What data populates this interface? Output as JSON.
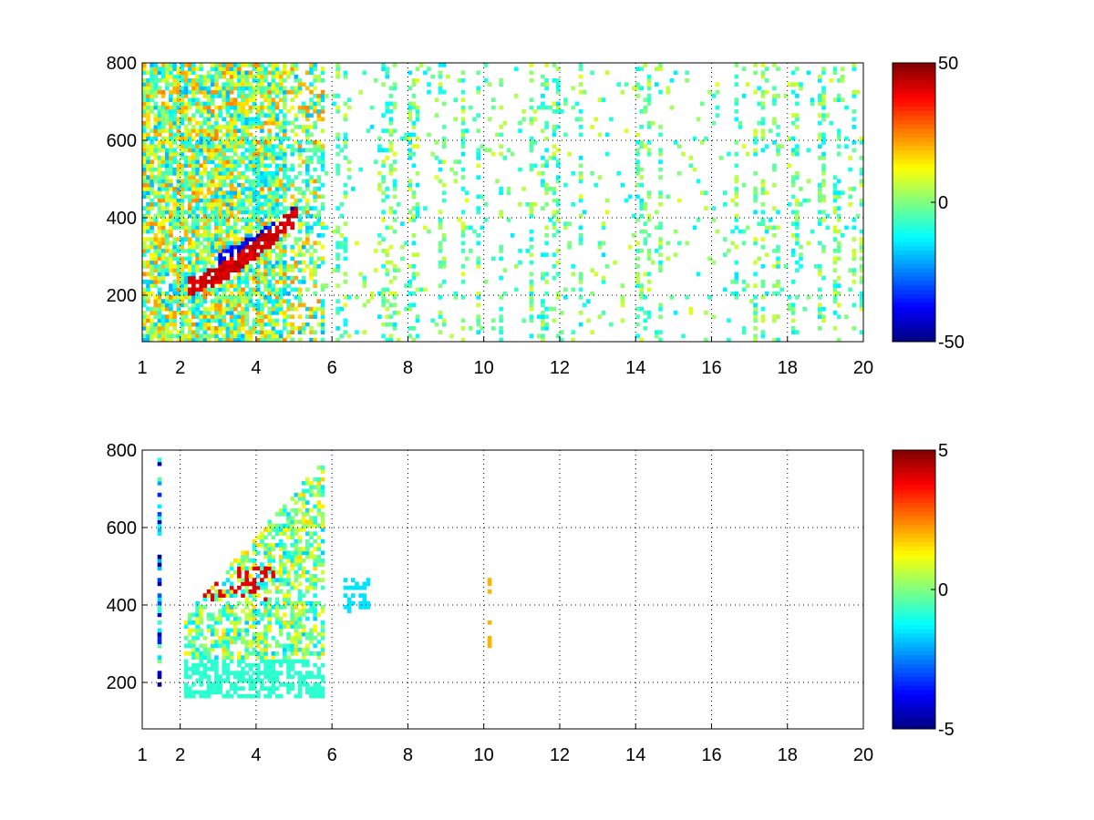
{
  "colors": {
    "background": "#ffffff",
    "axis": "#000000",
    "grid": "#000000",
    "colormap": "jet"
  },
  "chart_data": [
    {
      "type": "heatmap",
      "title": "",
      "xlabel": "",
      "ylabel": "",
      "xlim": [
        1,
        20
      ],
      "ylim": [
        80,
        800
      ],
      "xticks": [
        1,
        2,
        4,
        6,
        8,
        10,
        12,
        14,
        16,
        18,
        20
      ],
      "xtick_labels": [
        "1",
        "2",
        "4",
        "6",
        "8",
        "10",
        "12",
        "14",
        "16",
        "18",
        "20"
      ],
      "yticks": [
        200,
        400,
        600,
        800
      ],
      "ytick_labels": [
        "200",
        "400",
        "600",
        "800"
      ],
      "grid": true,
      "colorbar": {
        "clim": [
          -50,
          50
        ],
        "ticks": [
          -50,
          0,
          50
        ],
        "tick_labels": [
          "-50",
          "0",
          "50"
        ],
        "colormap": "jet",
        "placement": "right"
      },
      "features": [
        {
          "description": "dense scatter of values",
          "x_range": [
            1,
            6
          ],
          "y_range": [
            150,
            800
          ]
        },
        {
          "description": "positive ridge (red)",
          "points": [
            [
              2.2,
              220
            ],
            [
              3,
              250
            ],
            [
              3.5,
              280
            ],
            [
              4,
              320
            ],
            [
              4.5,
              360
            ],
            [
              5,
              400
            ]
          ],
          "value": 45
        },
        {
          "description": "negative band (blue)",
          "points": [
            [
              3,
              240
            ],
            [
              3.5,
              260
            ],
            [
              4,
              290
            ],
            [
              4.5,
              320
            ],
            [
              5,
              360
            ]
          ],
          "value": -45
        },
        {
          "description": "sparse near-zero values",
          "x_range": [
            6,
            20
          ],
          "y_range": [
            80,
            800
          ],
          "value_range": [
            -15,
            10
          ]
        }
      ]
    },
    {
      "type": "heatmap",
      "title": "",
      "xlabel": "",
      "ylabel": "",
      "xlim": [
        1,
        20
      ],
      "ylim": [
        80,
        800
      ],
      "xticks": [
        1,
        2,
        4,
        6,
        8,
        10,
        12,
        14,
        16,
        18,
        20
      ],
      "xtick_labels": [
        "1",
        "2",
        "4",
        "6",
        "8",
        "10",
        "12",
        "14",
        "16",
        "18",
        "20"
      ],
      "yticks": [
        200,
        400,
        600,
        800
      ],
      "ytick_labels": [
        "200",
        "400",
        "600",
        "800"
      ],
      "grid": true,
      "colorbar": {
        "clim": [
          -5,
          5
        ],
        "ticks": [
          -5,
          0,
          5
        ],
        "tick_labels": [
          "-5",
          "0",
          "5"
        ],
        "colormap": "jet",
        "placement": "right"
      },
      "features": [
        {
          "description": "dense scatter of values",
          "x_range": [
            2,
            5.8
          ],
          "y_range": [
            150,
            800
          ]
        },
        {
          "description": "positive cluster (red)",
          "x_range": [
            2.5,
            4.5
          ],
          "y_range": [
            400,
            500
          ],
          "value": 4
        },
        {
          "description": "isolated patch",
          "x_range": [
            6.3,
            7
          ],
          "y_range": [
            370,
            470
          ],
          "value": -1.5
        },
        {
          "description": "isolated points",
          "x": 10.1,
          "y_range": [
            260,
            480
          ],
          "value": 2
        }
      ]
    }
  ]
}
